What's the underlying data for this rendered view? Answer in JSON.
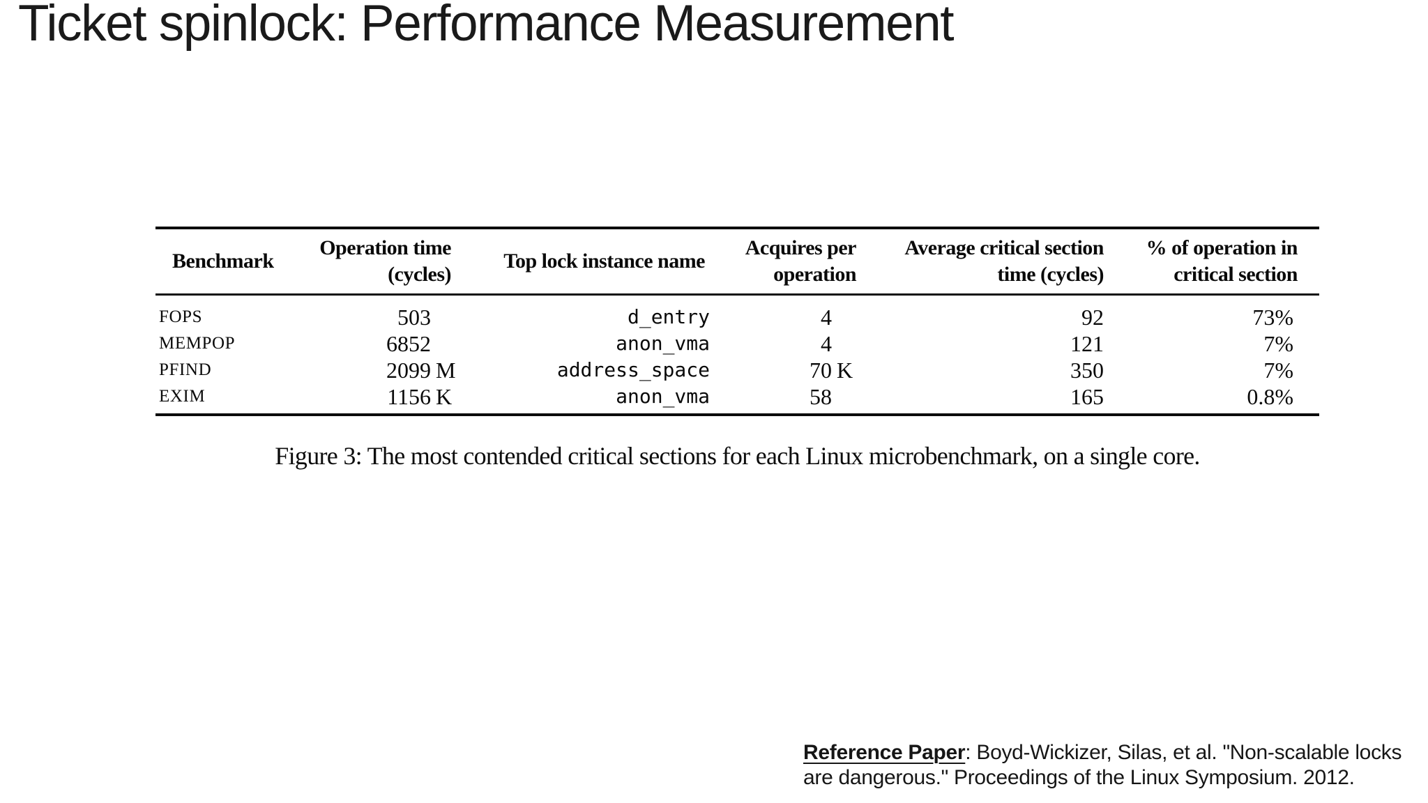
{
  "slide": {
    "title": "Ticket spinlock: Performance Measurement",
    "background_color": "#ffffff",
    "text_color": "#111111"
  },
  "figure": {
    "table": {
      "headers": [
        {
          "lines": [
            "Benchmark"
          ]
        },
        {
          "lines": [
            "Operation time",
            "(cycles)"
          ]
        },
        {
          "lines": [
            "Top lock instance name"
          ]
        },
        {
          "lines": [
            "Acquires per",
            "operation"
          ]
        },
        {
          "lines": [
            "Average critical section",
            "time (cycles)"
          ]
        },
        {
          "lines": [
            "% of operation in",
            "critical section"
          ]
        }
      ],
      "rows": [
        {
          "benchmark": "FOPS",
          "operation_time": "503",
          "operation_time_suffix": "",
          "lock_name": "d_entry",
          "acquires": "4",
          "acquires_suffix": "",
          "avg_critical_section_time": "92",
          "pct_of_operation": "73%"
        },
        {
          "benchmark": "MEMPOP",
          "operation_time": "6852",
          "operation_time_suffix": "",
          "lock_name": "anon_vma",
          "acquires": "4",
          "acquires_suffix": "",
          "avg_critical_section_time": "121",
          "pct_of_operation": "7%"
        },
        {
          "benchmark": "PFIND",
          "operation_time": "2099",
          "operation_time_suffix": "M",
          "lock_name": "address_space",
          "acquires": "70",
          "acquires_suffix": "K",
          "avg_critical_section_time": "350",
          "pct_of_operation": "7%"
        },
        {
          "benchmark": "EXIM",
          "operation_time": "1156",
          "operation_time_suffix": "K",
          "lock_name": "anon_vma",
          "acquires": "58",
          "acquires_suffix": "",
          "avg_critical_section_time": "165",
          "pct_of_operation": "0.8%"
        }
      ]
    },
    "caption": "Figure 3: The most contended critical sections for each Linux microbenchmark, on a single core."
  },
  "reference": {
    "label": "Reference Paper",
    "line1_rest": ": Boyd-Wickizer, Silas, et al. \"Non-scalable locks",
    "line2": "are dangerous.\" Proceedings of the Linux Symposium. 2012."
  }
}
